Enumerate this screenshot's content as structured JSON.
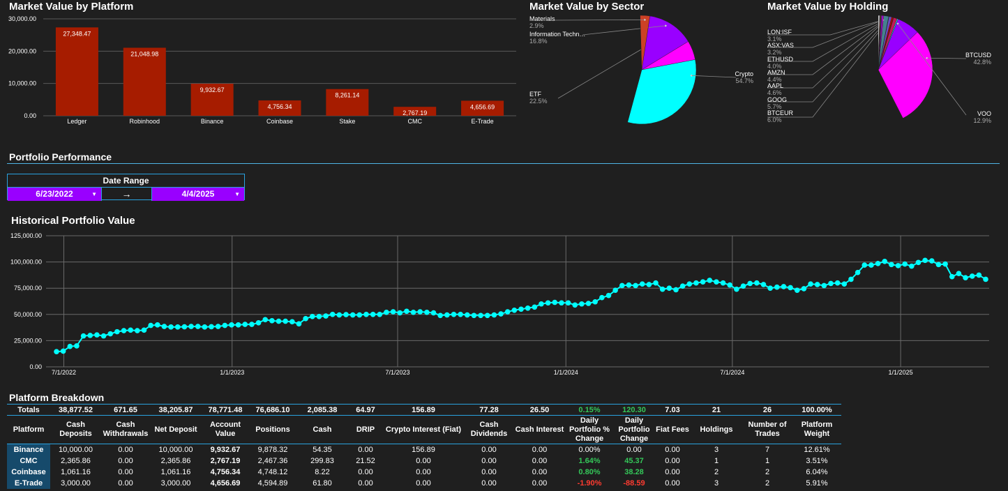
{
  "platform_chart": {
    "title": "Market Value by Platform",
    "chart_data": {
      "type": "bar",
      "title": "Market Value by Platform",
      "categories": [
        "Ledger",
        "Robinhood",
        "Binance",
        "Coinbase",
        "Stake",
        "CMC",
        "E-Trade"
      ],
      "values": [
        27348.47,
        21048.98,
        9932.67,
        4756.34,
        8261.14,
        2767.19,
        4656.69
      ],
      "value_labels": [
        "27,348.47",
        "21,048.98",
        "9,932.67",
        "4,756.34",
        "8,261.14",
        "2,767.19",
        "4,656.69"
      ],
      "ylim": [
        0,
        30000
      ],
      "yticks": [
        "0.00",
        "10,000.00",
        "20,000.00",
        "30,000.00"
      ],
      "color": "#a61c00",
      "grid": true
    }
  },
  "sector_chart": {
    "title": "Market Value by Sector",
    "chart_data": {
      "type": "pie",
      "slices": [
        {
          "label": "Crypto",
          "pct_label": "54.7%",
          "value": 54.7,
          "color": "#00ffff"
        },
        {
          "label": "ETF",
          "pct_label": "22.5%",
          "value": 22.5,
          "color": "#ff00ff"
        },
        {
          "label": "Information Techn…",
          "pct_label": "16.8%",
          "value": 16.8,
          "color": "#9900ff"
        },
        {
          "label": "",
          "pct_label": "",
          "value": 2.3,
          "color": "#1e88e5"
        },
        {
          "label": "",
          "pct_label": "",
          "value": 0.8,
          "color": "#3c78d8"
        },
        {
          "label": "Materials",
          "pct_label": "2.9%",
          "value": 2.9,
          "color": "#cc4125"
        }
      ]
    }
  },
  "holding_chart": {
    "title": "Market Value by Holding",
    "chart_data": {
      "type": "pie",
      "slices": [
        {
          "label": "BTCUSD",
          "pct_label": "42.8%",
          "value": 42.8,
          "color": "#ff00ff"
        },
        {
          "label": "VOO",
          "pct_label": "12.9%",
          "value": 12.9,
          "color": "#9900ff"
        },
        {
          "label": "",
          "pct_label": "",
          "value": 4.2,
          "color": "#1e88e5"
        },
        {
          "label": "",
          "pct_label": "",
          "value": 3.6,
          "color": "#4a86e8"
        },
        {
          "label": "BTCEUR",
          "pct_label": "6.0%",
          "value": 6.0,
          "color": "#00ffff"
        },
        {
          "label": "GOOG",
          "pct_label": "5.7%",
          "value": 5.7,
          "color": "#c2185b"
        },
        {
          "label": "AAPL",
          "pct_label": "4.6%",
          "value": 4.6,
          "color": "#a61c00"
        },
        {
          "label": "AMZN",
          "pct_label": "4.4%",
          "value": 4.4,
          "color": "#cc0000"
        },
        {
          "label": "ETHUSD",
          "pct_label": "4.0%",
          "value": 4.0,
          "color": "#6d4cc2"
        },
        {
          "label": "ASX:VAS",
          "pct_label": "3.2%",
          "value": 3.2,
          "color": "#00bcd4"
        },
        {
          "label": "LON:ISF",
          "pct_label": "3.1%",
          "value": 3.1,
          "color": "#45818e"
        },
        {
          "label": "",
          "pct_label": "",
          "value": 1.6,
          "color": "#ff00ff"
        },
        {
          "label": "",
          "pct_label": "",
          "value": 1.3,
          "color": "#9900ff"
        },
        {
          "label": "",
          "pct_label": "",
          "value": 1.0,
          "color": "#674ea7"
        },
        {
          "label": "",
          "pct_label": "",
          "value": 0.8,
          "color": "#cc4125"
        },
        {
          "label": "",
          "pct_label": "",
          "value": 0.6,
          "color": "#1155cc"
        },
        {
          "label": "",
          "pct_label": "",
          "value": 0.5,
          "color": "#e06666"
        },
        {
          "label": "",
          "pct_label": "",
          "value": 0.4,
          "color": "#ffffff"
        }
      ]
    }
  },
  "performance": {
    "section_title": "Portfolio Performance",
    "date_range": {
      "label": "Date Range",
      "start": "6/23/2022",
      "arrow": "→",
      "end": "4/4/2025"
    }
  },
  "history_chart": {
    "title": "Historical Portfolio Value",
    "chart_data": {
      "type": "line",
      "title": "Historical Portfolio Value",
      "x_start": "2022-06-23",
      "x_end": "2025-04-04",
      "x_ticks": [
        "7/1/2022",
        "1/1/2023",
        "7/1/2023",
        "1/1/2024",
        "7/1/2024",
        "1/1/2025"
      ],
      "ylim": [
        0,
        125000
      ],
      "yticks": [
        "0.00",
        "25,000.00",
        "50,000.00",
        "75,000.00",
        "100,000.00",
        "125,000.00"
      ],
      "color": "#00ffff",
      "grid": true,
      "values": [
        14500,
        15000,
        19500,
        20000,
        29500,
        30000,
        30500,
        29500,
        31500,
        33500,
        34500,
        35000,
        34500,
        35000,
        39500,
        40000,
        38500,
        38000,
        38000,
        38200,
        38500,
        38500,
        38000,
        38300,
        38500,
        39500,
        40000,
        40000,
        40500,
        40500,
        42000,
        45000,
        44000,
        43500,
        43500,
        43000,
        41000,
        46000,
        48000,
        48000,
        48500,
        50000,
        49500,
        49800,
        49500,
        49500,
        50000,
        50000,
        50000,
        52000,
        52500,
        51500,
        53000,
        52000,
        52500,
        52000,
        51500,
        49000,
        49500,
        50000,
        50000,
        49500,
        49000,
        49000,
        49000,
        49500,
        50500,
        52500,
        54000,
        55000,
        56000,
        57000,
        60000,
        61000,
        61500,
        61000,
        61000,
        59000,
        60000,
        60500,
        62000,
        66000,
        68000,
        73000,
        77500,
        78000,
        77500,
        79000,
        78500,
        80000,
        74000,
        75000,
        73500,
        77000,
        79000,
        80000,
        81000,
        82500,
        81000,
        80000,
        78000,
        74000,
        77000,
        79500,
        80000,
        78500,
        75000,
        76000,
        76500,
        75500,
        73000,
        74500,
        79000,
        78500,
        77500,
        79500,
        80000,
        79000,
        83500,
        90000,
        97000,
        97000,
        98500,
        100500,
        97500,
        96500,
        98000,
        96000,
        99500,
        101500,
        101000,
        97500,
        98000,
        86000,
        89000,
        85000,
        86500,
        87500,
        83500
      ]
    }
  },
  "breakdown": {
    "title": "Platform Breakdown",
    "totals_label": "Totals",
    "totals": [
      "38,877.52",
      "671.65",
      "38,205.87",
      "78,771.48",
      "76,686.10",
      "2,085.38",
      "64.97",
      "156.89",
      "77.28",
      "26.50",
      "0.15%",
      "120.30",
      "7.03",
      "21",
      "26",
      "100.00%"
    ],
    "headers": [
      "Platform",
      "Cash Deposits",
      "Cash Withdrawals",
      "Net Deposit",
      "Account Value",
      "Positions",
      "Cash",
      "DRIP",
      "Crypto Interest (Fiat)",
      "Cash Dividends",
      "Cash Interest",
      "Daily Portfolio % Change",
      "Daily Portfolio Change",
      "Fiat Fees",
      "Holdings",
      "Number of Trades",
      "Platform Weight"
    ],
    "rows": [
      [
        "Binance",
        "10,000.00",
        "0.00",
        "10,000.00",
        "9,932.67",
        "9,878.32",
        "54.35",
        "0.00",
        "156.89",
        "0.00",
        "0.00",
        "0.00%",
        "0.00",
        "0.00",
        "3",
        "7",
        "12.61%"
      ],
      [
        "CMC",
        "2,365.86",
        "0.00",
        "2,365.86",
        "2,767.19",
        "2,467.36",
        "299.83",
        "21.52",
        "0.00",
        "0.00",
        "0.00",
        "1.64%",
        "45.37",
        "0.00",
        "1",
        "1",
        "3.51%"
      ],
      [
        "Coinbase",
        "1,061.16",
        "0.00",
        "1,061.16",
        "4,756.34",
        "4,748.12",
        "8.22",
        "0.00",
        "0.00",
        "0.00",
        "0.00",
        "0.80%",
        "38.28",
        "0.00",
        "2",
        "2",
        "6.04%"
      ],
      [
        "E-Trade",
        "3,000.00",
        "0.00",
        "3,000.00",
        "4,656.69",
        "4,594.89",
        "61.80",
        "0.00",
        "0.00",
        "0.00",
        "0.00",
        "-1.90%",
        "-88.59",
        "0.00",
        "3",
        "2",
        "5.91%"
      ]
    ],
    "change_colors": {
      "positive": "#34c759",
      "negative": "#ff3b30"
    }
  }
}
